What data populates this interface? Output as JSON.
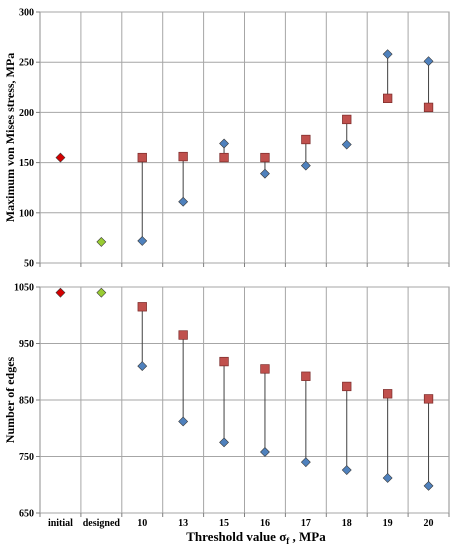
{
  "chart_data": [
    {
      "type": "scatter",
      "ylabel": "Maximum von Mises stress, MPa",
      "ylim": [
        50,
        300
      ],
      "yticks": [
        "50",
        "100",
        "150",
        "200",
        "250",
        "300"
      ],
      "categories": [
        "initial",
        "designed",
        "10",
        "13",
        "15",
        "16",
        "17",
        "18",
        "19",
        "20"
      ],
      "grid": true,
      "series": [
        {
          "values": [
            155,
            null,
            null,
            null,
            null,
            null,
            null,
            null,
            null,
            null
          ],
          "marker": "diamond",
          "color": "#d40000"
        },
        {
          "values": [
            null,
            71,
            null,
            null,
            null,
            null,
            null,
            null,
            null,
            null
          ],
          "marker": "diamond",
          "color": "#99cc33"
        },
        {
          "values": [
            null,
            null,
            72,
            111,
            169,
            139,
            147,
            168,
            258,
            251
          ],
          "marker": "diamond",
          "color": "#4f81bd"
        },
        {
          "values": [
            null,
            null,
            155,
            156,
            155,
            155,
            173,
            193,
            214,
            205
          ],
          "marker": "square",
          "color": "#c0504d"
        }
      ]
    },
    {
      "type": "scatter",
      "ylabel": "Number of edges",
      "xlabel": "Threshold value σ",
      "xlabel_sub": "f",
      "xlabel_suffix": " , MPa",
      "ylim": [
        650,
        1050
      ],
      "yticks": [
        "650",
        "750",
        "850",
        "950",
        "1050"
      ],
      "categories": [
        "initial",
        "designed",
        "10",
        "13",
        "15",
        "16",
        "17",
        "18",
        "19",
        "20"
      ],
      "grid": true,
      "series": [
        {
          "values": [
            1040,
            null,
            null,
            null,
            null,
            null,
            null,
            null,
            null,
            null
          ],
          "marker": "diamond",
          "color": "#d40000"
        },
        {
          "values": [
            null,
            1040,
            null,
            null,
            null,
            null,
            null,
            null,
            null,
            null
          ],
          "marker": "diamond",
          "color": "#99cc33"
        },
        {
          "values": [
            null,
            null,
            910,
            812,
            775,
            758,
            740,
            726,
            712,
            698
          ],
          "marker": "diamond",
          "color": "#4f81bd"
        },
        {
          "values": [
            null,
            null,
            1015,
            965,
            918,
            905,
            892,
            874,
            861,
            852
          ],
          "marker": "square",
          "color": "#c0504d"
        }
      ]
    }
  ]
}
